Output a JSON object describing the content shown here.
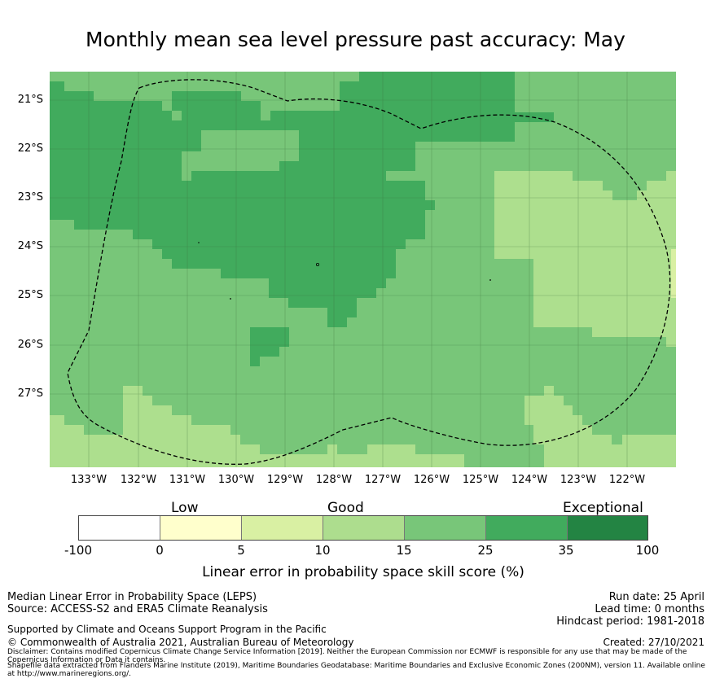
{
  "title": "Monthly mean sea level pressure past accuracy: May",
  "map": {
    "lat_labels": [
      "21°S",
      "22°S",
      "23°S",
      "24°S",
      "25°S",
      "26°S",
      "27°S"
    ],
    "lon_labels": [
      "133°W",
      "132°W",
      "131°W",
      "130°W",
      "129°W",
      "128°W",
      "127°W",
      "126°W",
      "125°W",
      "124°W",
      "123°W",
      "122°W"
    ],
    "palette": {
      "c5_15": "#addf8e",
      "c15_25": "#78c679",
      "c25_35": "#41ab5d",
      "c0_5": "#ffffcc",
      "c5_10": "#d9f0a3"
    },
    "boundary_line": "dashed-black"
  },
  "colorbar": {
    "categories": [
      "Low",
      "Good",
      "Exceptional"
    ],
    "ticks": [
      "-100",
      "0",
      "5",
      "10",
      "15",
      "25",
      "35",
      "100"
    ],
    "colors": [
      "#ffffff",
      "#ffffcc",
      "#d9f0a3",
      "#addd8e",
      "#78c679",
      "#41ab5d",
      "#238443"
    ],
    "label": "Linear error in probability space skill score (%)"
  },
  "footer": {
    "left1": "Median Linear Error in Probability Space (LEPS)",
    "left2": "Source: ACCESS-S2 and ERA5 Climate Reanalysis",
    "support": "Supported by Climate and Oceans Support Program in the Pacific",
    "copyright": "© Commonwealth of Australia 2021, Australian Bureau of Meteorology",
    "run_date": "Run date: 25 April",
    "lead_time": "Lead time: 0 months",
    "hindcast": "Hindcast period: 1981-2018",
    "created": "Created: 27/10/2021",
    "disclaimer": "Disclaimer: Contains modified Copernicus Climate Change Service Information [2019]. Neither the European Commission nor ECMWF is responsible for any use that may be made of the Copernicus Information or Data it contains.",
    "shapefile": "Shapefile data extracted from Flanders Marine Institute (2019), Maritime Boundaries Geodatabase: Maritime Boundaries and Exclusive Economic Zones (200NM), version 11. Available online at http://www.marineregions.org/."
  }
}
